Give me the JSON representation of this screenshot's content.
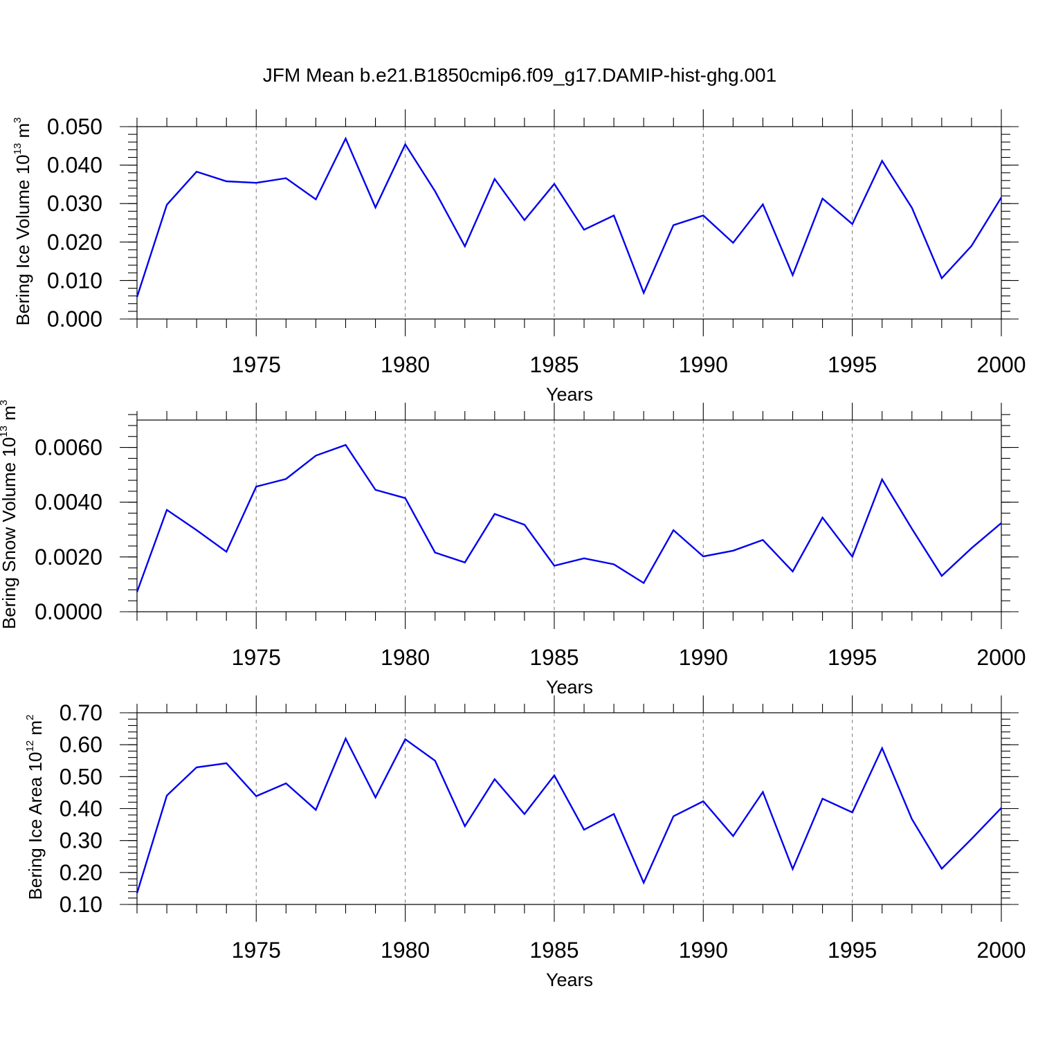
{
  "title": "JFM Mean b.e21.B1850cmip6.f09_g17.DAMIP-hist-ghg.001",
  "line_color": "#0000ee",
  "chart_data": [
    {
      "type": "line",
      "xlabel": "Years",
      "ylabel": "Bering Ice Volume 10",
      "ylabel_sup": "13",
      "ylabel_unit": "m",
      "ylabel_unit_sup": "3",
      "xlim": [
        1971,
        2000
      ],
      "ylim": [
        0,
        0.05
      ],
      "yticks": [
        0,
        0.01,
        0.02,
        0.03,
        0.04,
        0.05
      ],
      "ytick_labels": [
        "0.000",
        "0.010",
        "0.020",
        "0.030",
        "0.040",
        "0.050"
      ],
      "yminor_step": 0.002,
      "xticks": [
        1975,
        1980,
        1985,
        1990,
        1995,
        2000
      ],
      "xtick_labels": [
        "1975",
        "1980",
        "1985",
        "1990",
        "1995",
        "2000"
      ],
      "grid": "vertical dashed at major x ticks",
      "x": [
        1971,
        1972,
        1973,
        1974,
        1975,
        1976,
        1977,
        1978,
        1979,
        1980,
        1981,
        1982,
        1983,
        1984,
        1985,
        1986,
        1987,
        1988,
        1989,
        1990,
        1991,
        1992,
        1993,
        1994,
        1995,
        1996,
        1997,
        1998,
        1999,
        2000
      ],
      "values": [
        0.0057,
        0.0297,
        0.0383,
        0.0358,
        0.0354,
        0.0366,
        0.0311,
        0.0469,
        0.029,
        0.0454,
        0.0332,
        0.0189,
        0.0364,
        0.0257,
        0.0351,
        0.0232,
        0.0269,
        0.0068,
        0.0244,
        0.0269,
        0.0198,
        0.0298,
        0.0114,
        0.0313,
        0.0247,
        0.0411,
        0.0289,
        0.0106,
        0.019,
        0.0316
      ]
    },
    {
      "type": "line",
      "xlabel": "Years",
      "ylabel": "Bering Snow Volume 10",
      "ylabel_sup": "13",
      "ylabel_unit": "m",
      "ylabel_unit_sup": "3",
      "xlim": [
        1971,
        2000
      ],
      "ylim": [
        0,
        0.007
      ],
      "yticks": [
        0,
        0.002,
        0.004,
        0.006
      ],
      "ytick_labels": [
        "0.0000",
        "0.0020",
        "0.0040",
        "0.0060"
      ],
      "yminor_step": 0.0004,
      "xticks": [
        1975,
        1980,
        1985,
        1990,
        1995,
        2000
      ],
      "xtick_labels": [
        "1975",
        "1980",
        "1985",
        "1990",
        "1995",
        "2000"
      ],
      "grid": "vertical dashed at major x ticks",
      "x": [
        1971,
        1972,
        1973,
        1974,
        1975,
        1976,
        1977,
        1978,
        1979,
        1980,
        1981,
        1982,
        1983,
        1984,
        1985,
        1986,
        1987,
        1988,
        1989,
        1990,
        1991,
        1992,
        1993,
        1994,
        1995,
        1996,
        1997,
        1998,
        1999,
        2000
      ],
      "values": [
        0.00072,
        0.00372,
        0.00298,
        0.00219,
        0.00457,
        0.00485,
        0.0057,
        0.00609,
        0.00445,
        0.00415,
        0.00216,
        0.0018,
        0.00357,
        0.00318,
        0.00168,
        0.00195,
        0.00173,
        0.00105,
        0.00298,
        0.00202,
        0.00223,
        0.00262,
        0.00147,
        0.00344,
        0.00201,
        0.00483,
        0.00303,
        0.00131,
        0.00232,
        0.00324
      ]
    },
    {
      "type": "line",
      "xlabel": "Years",
      "ylabel": "Bering Ice Area 10",
      "ylabel_sup": "12",
      "ylabel_unit": "m",
      "ylabel_unit_sup": "2",
      "xlim": [
        1971,
        2000
      ],
      "ylim": [
        0.1,
        0.7
      ],
      "yticks": [
        0.1,
        0.2,
        0.3,
        0.4,
        0.5,
        0.6,
        0.7
      ],
      "ytick_labels": [
        "0.10",
        "0.20",
        "0.30",
        "0.40",
        "0.50",
        "0.60",
        "0.70"
      ],
      "yminor_step": 0.02,
      "xticks": [
        1975,
        1980,
        1985,
        1990,
        1995,
        2000
      ],
      "xtick_labels": [
        "1975",
        "1980",
        "1985",
        "1990",
        "1995",
        "2000"
      ],
      "grid": "vertical dashed at major x ticks",
      "x": [
        1971,
        1972,
        1973,
        1974,
        1975,
        1976,
        1977,
        1978,
        1979,
        1980,
        1981,
        1982,
        1983,
        1984,
        1985,
        1986,
        1987,
        1988,
        1989,
        1990,
        1991,
        1992,
        1993,
        1994,
        1995,
        1996,
        1997,
        1998,
        1999,
        2000
      ],
      "values": [
        0.135,
        0.441,
        0.529,
        0.542,
        0.439,
        0.479,
        0.396,
        0.619,
        0.435,
        0.617,
        0.55,
        0.345,
        0.492,
        0.383,
        0.504,
        0.334,
        0.383,
        0.168,
        0.376,
        0.423,
        0.314,
        0.452,
        0.211,
        0.431,
        0.388,
        0.589,
        0.367,
        0.212,
        0.305,
        0.402
      ]
    }
  ]
}
